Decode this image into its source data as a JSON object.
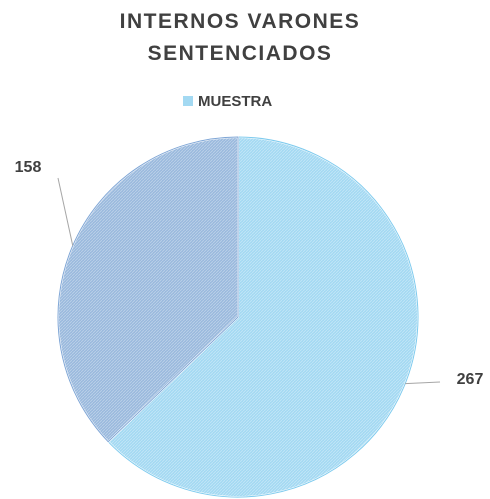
{
  "chart_data": {
    "type": "pie",
    "title": "INTERNOS VARONES SENTENCIADOS",
    "categories": [
      null,
      null
    ],
    "series": [
      {
        "name": "MUESTRA",
        "color": "#a3d9f2",
        "values": [
          267,
          158
        ]
      }
    ],
    "colors": [
      "#a3d9f2",
      "#9ab9dd"
    ]
  }
}
